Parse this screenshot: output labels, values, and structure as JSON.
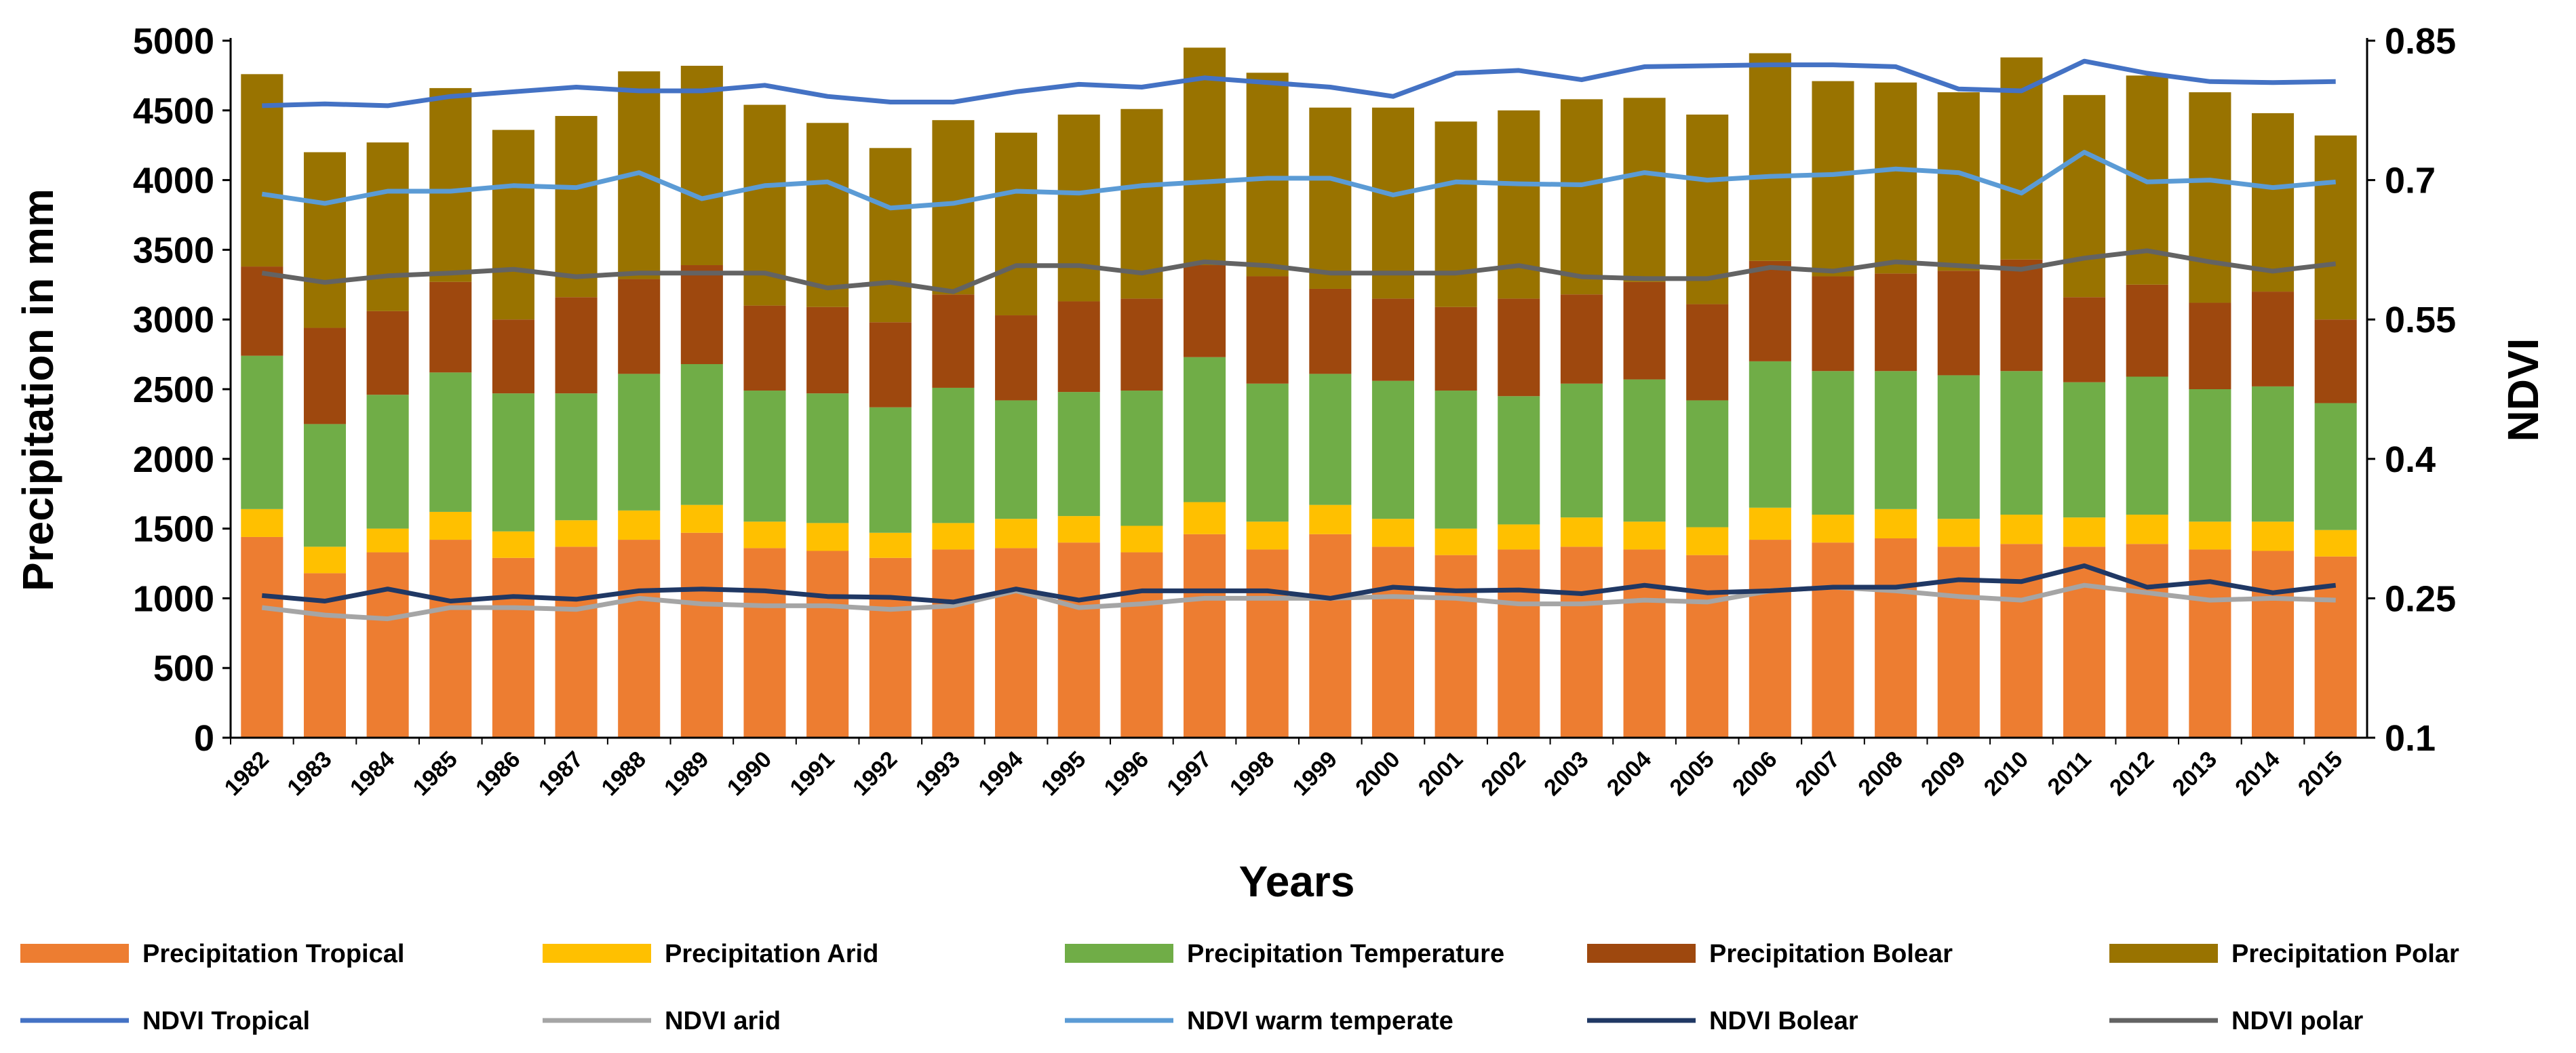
{
  "chart_data": {
    "type": "bar",
    "stacked": true,
    "xlabel": "Years",
    "ylabel": "Precipitation in mm",
    "y2label": "NDVI",
    "ylim": [
      0,
      5000
    ],
    "y2lim": [
      0.1,
      0.85
    ],
    "yticks": [
      0,
      500,
      1000,
      1500,
      2000,
      2500,
      3000,
      3500,
      4000,
      4500,
      5000
    ],
    "y2ticks": [
      "0.1",
      "0.25",
      "0.4",
      "0.55",
      "0.7",
      "0.85"
    ],
    "grid": false,
    "legend_position": "bottom",
    "categories": [
      "1982",
      "1983",
      "1984",
      "1985",
      "1986",
      "1987",
      "1988",
      "1989",
      "1990",
      "1991",
      "1992",
      "1993",
      "1994",
      "1995",
      "1996",
      "1997",
      "1998",
      "1999",
      "2000",
      "2001",
      "2002",
      "2003",
      "2004",
      "2005",
      "2006",
      "2007",
      "2008",
      "2009",
      "2010",
      "2011",
      "2012",
      "2013",
      "2014",
      "2015"
    ],
    "series": [
      {
        "name": "Precipitation Tropical",
        "kind": "bar",
        "color": "#ED7D31",
        "values": [
          1440,
          1180,
          1330,
          1420,
          1290,
          1370,
          1420,
          1470,
          1360,
          1340,
          1290,
          1350,
          1360,
          1400,
          1330,
          1460,
          1350,
          1460,
          1370,
          1310,
          1350,
          1370,
          1350,
          1310,
          1420,
          1400,
          1430,
          1370,
          1390,
          1370,
          1390,
          1350,
          1340,
          1300
        ]
      },
      {
        "name": "Precipitation Arid",
        "kind": "bar",
        "color": "#FFC000",
        "values": [
          200,
          190,
          170,
          200,
          190,
          190,
          210,
          200,
          190,
          200,
          180,
          190,
          210,
          190,
          190,
          230,
          200,
          210,
          200,
          190,
          180,
          210,
          200,
          200,
          230,
          200,
          210,
          200,
          210,
          210,
          210,
          200,
          210,
          190
        ]
      },
      {
        "name": "Precipitation Temperature",
        "kind": "bar",
        "color": "#70AD47",
        "values": [
          1100,
          880,
          960,
          1000,
          990,
          910,
          980,
          1010,
          940,
          930,
          900,
          970,
          850,
          890,
          970,
          1040,
          990,
          940,
          990,
          990,
          920,
          960,
          1020,
          910,
          1050,
          1030,
          990,
          1030,
          1030,
          970,
          990,
          950,
          970,
          910
        ]
      },
      {
        "name": "Precipitation Bolear",
        "kind": "bar",
        "color": "#9E480E",
        "values": [
          640,
          690,
          600,
          650,
          530,
          690,
          680,
          710,
          610,
          620,
          610,
          670,
          610,
          650,
          660,
          660,
          770,
          610,
          590,
          600,
          700,
          640,
          700,
          690,
          720,
          680,
          700,
          750,
          800,
          610,
          660,
          620,
          680,
          600
        ]
      },
      {
        "name": "Precipitation Polar",
        "kind": "bar",
        "color": "#997300",
        "values": [
          1380,
          1260,
          1210,
          1390,
          1360,
          1300,
          1490,
          1430,
          1440,
          1320,
          1250,
          1250,
          1310,
          1340,
          1360,
          1560,
          1460,
          1300,
          1370,
          1330,
          1350,
          1400,
          1320,
          1360,
          1490,
          1400,
          1370,
          1280,
          1450,
          1450,
          1500,
          1510,
          1280,
          1320
        ]
      },
      {
        "name": "NDVI Tropical",
        "kind": "line",
        "axis": "right",
        "color": "#4472C4",
        "values": [
          0.78,
          0.782,
          0.78,
          0.79,
          0.795,
          0.8,
          0.796,
          0.796,
          0.802,
          0.79,
          0.784,
          0.784,
          0.795,
          0.803,
          0.8,
          0.81,
          0.805,
          0.8,
          0.79,
          0.815,
          0.818,
          0.808,
          0.822,
          0.823,
          0.824,
          0.824,
          0.822,
          0.798,
          0.796,
          0.828,
          0.815,
          0.806,
          0.805,
          0.806
        ]
      },
      {
        "name": "NDVI arid",
        "kind": "line",
        "axis": "right",
        "color": "#A5A5A5",
        "values": [
          0.24,
          0.232,
          0.228,
          0.24,
          0.24,
          0.238,
          0.25,
          0.244,
          0.242,
          0.242,
          0.238,
          0.242,
          0.258,
          0.24,
          0.244,
          0.25,
          0.25,
          0.25,
          0.252,
          0.25,
          0.244,
          0.244,
          0.248,
          0.246,
          0.258,
          0.262,
          0.258,
          0.252,
          0.248,
          0.264,
          0.256,
          0.248,
          0.25,
          0.248
        ]
      },
      {
        "name": "NDVI warm temperate",
        "kind": "line",
        "axis": "right",
        "color": "#5B9BD5",
        "values": [
          0.685,
          0.675,
          0.688,
          0.688,
          0.694,
          0.692,
          0.708,
          0.68,
          0.694,
          0.698,
          0.67,
          0.675,
          0.688,
          0.686,
          0.694,
          0.698,
          0.702,
          0.702,
          0.684,
          0.698,
          0.696,
          0.695,
          0.708,
          0.7,
          0.704,
          0.706,
          0.712,
          0.708,
          0.686,
          0.73,
          0.698,
          0.7,
          0.692,
          0.698
        ]
      },
      {
        "name": "NDVI Bolear",
        "kind": "line",
        "axis": "right",
        "color": "#203864",
        "values": [
          0.253,
          0.247,
          0.26,
          0.247,
          0.252,
          0.249,
          0.258,
          0.26,
          0.258,
          0.252,
          0.251,
          0.246,
          0.26,
          0.248,
          0.258,
          0.258,
          0.258,
          0.25,
          0.262,
          0.258,
          0.259,
          0.255,
          0.264,
          0.256,
          0.258,
          0.262,
          0.262,
          0.27,
          0.268,
          0.285,
          0.262,
          0.268,
          0.256,
          0.264
        ]
      },
      {
        "name": "NDVI polar",
        "kind": "line",
        "axis": "right",
        "color": "#636363",
        "values": [
          0.6,
          0.59,
          0.597,
          0.6,
          0.604,
          0.596,
          0.6,
          0.6,
          0.6,
          0.584,
          0.59,
          0.58,
          0.608,
          0.608,
          0.6,
          0.612,
          0.608,
          0.6,
          0.6,
          0.6,
          0.608,
          0.596,
          0.594,
          0.594,
          0.606,
          0.602,
          0.612,
          0.608,
          0.604,
          0.616,
          0.624,
          0.612,
          0.602,
          0.61
        ]
      }
    ]
  }
}
